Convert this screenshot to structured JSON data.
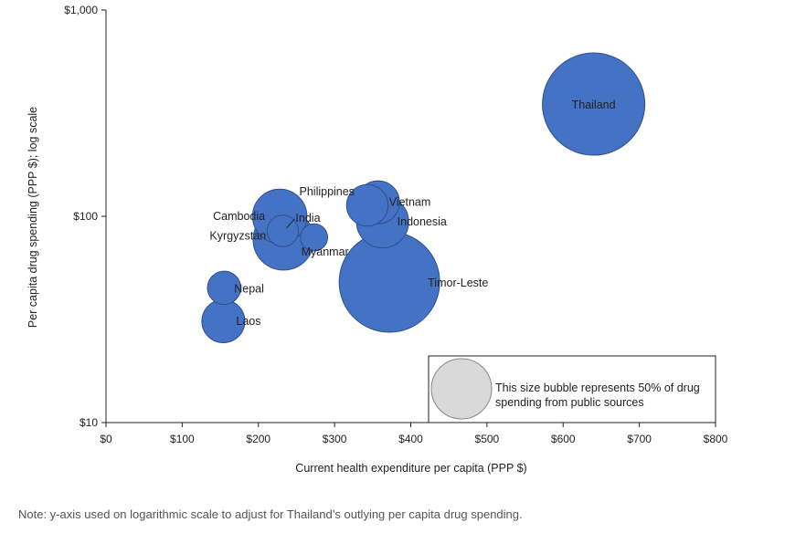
{
  "chart_data": {
    "type": "scatter",
    "variant": "bubble",
    "xlabel": "Current health expenditure per capita (PPP $)",
    "ylabel": "Per capita drug spending (PPP $); log scale",
    "xlim": [
      0,
      800
    ],
    "ylim": [
      10,
      1000
    ],
    "yscale": "log",
    "x_ticks": [
      0,
      100,
      200,
      300,
      400,
      500,
      600,
      700,
      800
    ],
    "x_tick_labels": [
      "$0",
      "$100",
      "$200",
      "$300",
      "$400",
      "$500",
      "$600",
      "$700",
      "$800"
    ],
    "y_ticks": [
      10,
      100,
      1000
    ],
    "y_tick_labels": [
      "$10",
      "$100",
      "$1,000"
    ],
    "bubble_color": "#4472C4",
    "points": [
      {
        "label": "Thailand",
        "x": 640,
        "y": 350,
        "public_share": 0.85
      },
      {
        "label": "Timor-Leste",
        "x": 372,
        "y": 48,
        "public_share": 0.82
      },
      {
        "label": "Vietnam",
        "x": 357,
        "y": 117,
        "public_share": 0.15
      },
      {
        "label": "Philippines",
        "x": 343,
        "y": 113,
        "public_share": 0.14
      },
      {
        "label": "Indonesia",
        "x": 363,
        "y": 94,
        "public_share": 0.22
      },
      {
        "label": "Cambodia",
        "x": 228,
        "y": 100,
        "public_share": 0.24
      },
      {
        "label": "India",
        "x": 232,
        "y": 85,
        "public_share": 0.08
      },
      {
        "label": "Kyrgyzstan",
        "x": 233,
        "y": 77,
        "public_share": 0.3
      },
      {
        "label": "Myanmar",
        "x": 273,
        "y": 79,
        "public_share": 0.06
      },
      {
        "label": "Nepal",
        "x": 155,
        "y": 45,
        "public_share": 0.09
      },
      {
        "label": "Laos",
        "x": 154,
        "y": 31,
        "public_share": 0.15
      }
    ],
    "legend": {
      "text_line1": "This size bubble represents 50% of drug",
      "text_line2": "spending from public sources",
      "public_share": 0.5,
      "color": "#D9D9D9",
      "placement": "bottom-right"
    }
  },
  "note": "Note: y-axis used on logarithmic scale to adjust for Thailand’s outlying per capita drug spending."
}
